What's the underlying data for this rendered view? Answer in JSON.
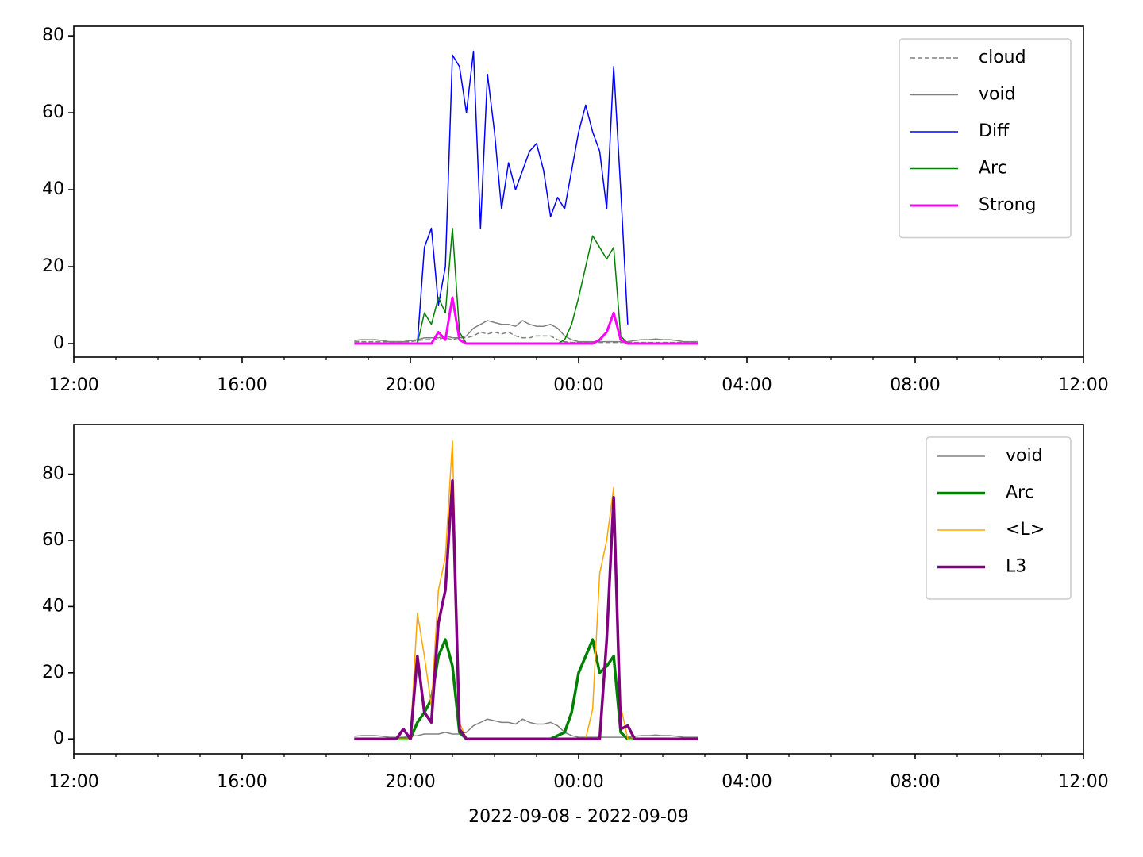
{
  "chart_data": [
    {
      "type": "line",
      "x": [
        18.667,
        18.833,
        19,
        19.167,
        19.333,
        19.5,
        19.667,
        19.833,
        20,
        20.167,
        20.333,
        20.5,
        20.667,
        20.833,
        21,
        21.167,
        21.333,
        21.5,
        21.667,
        21.833,
        22,
        22.167,
        22.333,
        22.5,
        22.667,
        22.833,
        23,
        23.167,
        23.333,
        23.5,
        23.667,
        23.833,
        24,
        24.167,
        24.333,
        24.5,
        24.667,
        24.833,
        25,
        25.167,
        25.333,
        25.5,
        25.667,
        25.833,
        26,
        26.167,
        26.333,
        26.5,
        26.667,
        26.833
      ],
      "xlim": [
        12,
        36
      ],
      "xticks": [
        {
          "value": 12,
          "label": "12:00"
        },
        {
          "value": 16,
          "label": "16:00"
        },
        {
          "value": 20,
          "label": "20:00"
        },
        {
          "value": 24,
          "label": "00:00"
        },
        {
          "value": 28,
          "label": "04:00"
        },
        {
          "value": 32,
          "label": "08:00"
        },
        {
          "value": 36,
          "label": "12:00"
        }
      ],
      "xminorticks": [
        13,
        14,
        15,
        17,
        18,
        19,
        21,
        22,
        23,
        25,
        26,
        27,
        29,
        30,
        31,
        33,
        34,
        35
      ],
      "ylim": [
        -3.5,
        82.5
      ],
      "yticks": [
        0,
        20,
        40,
        60,
        80
      ],
      "legend": "upper right",
      "series": [
        {
          "name": "cloud",
          "color": "#808080",
          "linewidth": 1.5,
          "linestyle": "dashed",
          "values": [
            0.5,
            0.5,
            0.5,
            0.5,
            0.5,
            0.5,
            0.5,
            0.5,
            0.5,
            0.8,
            1,
            1,
            1.2,
            1.5,
            1,
            1.5,
            1.5,
            2,
            3,
            2.5,
            3,
            2.5,
            3,
            2,
            1.5,
            1.5,
            2,
            2,
            2,
            1,
            0.5,
            0.3,
            0.3,
            0.3,
            0.3,
            0.3,
            0.3,
            0.3,
            0.3,
            0.3,
            0.3,
            0.3,
            0.3,
            0.3,
            0.3,
            0.3,
            0.3,
            0.3,
            0.3,
            0.3
          ]
        },
        {
          "name": "void",
          "color": "#808080",
          "linewidth": 1.5,
          "linestyle": "solid",
          "values": [
            0.8,
            1,
            1,
            1,
            0.8,
            0.5,
            0.5,
            0.5,
            0.8,
            1,
            1.5,
            1.5,
            1.5,
            2,
            1.5,
            1.5,
            2,
            4,
            5,
            6,
            5.5,
            5,
            5,
            4.5,
            6,
            5,
            4.5,
            4.5,
            5,
            4,
            2,
            1,
            0.5,
            0.5,
            0.5,
            0.5,
            0.5,
            0.5,
            0.5,
            0.5,
            0.8,
            1,
            1,
            1.2,
            1,
            1,
            0.8,
            0.5,
            0.5,
            0.5
          ]
        },
        {
          "name": "Diff",
          "color": "#0000ff",
          "linewidth": 1.5,
          "linestyle": "solid",
          "values": [
            null,
            null,
            null,
            null,
            null,
            null,
            null,
            null,
            null,
            0,
            25,
            30,
            10,
            20,
            75,
            72,
            60,
            76,
            30,
            70,
            55,
            35,
            47,
            40,
            45,
            50,
            52,
            45,
            33,
            38,
            35,
            45,
            55,
            62,
            55,
            50,
            35,
            72,
            40,
            5,
            null,
            null,
            null,
            null,
            null,
            null,
            null,
            null,
            null,
            null
          ]
        },
        {
          "name": "Arc",
          "color": "#008000",
          "linewidth": 1.5,
          "linestyle": "solid",
          "values": [
            null,
            null,
            null,
            null,
            null,
            null,
            null,
            null,
            null,
            0,
            8,
            5,
            12,
            8,
            30,
            3,
            0,
            0,
            0,
            0,
            0,
            0,
            0,
            0,
            0,
            0,
            0,
            0,
            0,
            0,
            1,
            5,
            12,
            20,
            28,
            25,
            22,
            25,
            2,
            0,
            null,
            null,
            null,
            null,
            null,
            null,
            null,
            null,
            null,
            null
          ]
        },
        {
          "name": "Strong",
          "color": "#ff00ff",
          "linewidth": 3,
          "linestyle": "solid",
          "values": [
            0,
            0,
            0,
            0,
            0,
            0,
            0,
            0,
            0,
            0,
            0,
            0,
            3,
            1,
            12,
            1,
            0,
            0,
            0,
            0,
            0,
            0,
            0,
            0,
            0,
            0,
            0,
            0,
            0,
            0,
            0,
            0,
            0,
            0,
            0,
            1,
            3,
            8,
            1,
            0,
            0,
            0,
            0,
            0,
            0,
            0,
            0,
            0,
            0,
            0
          ]
        }
      ]
    },
    {
      "type": "line",
      "x": [
        18.667,
        18.833,
        19,
        19.167,
        19.333,
        19.5,
        19.667,
        19.833,
        20,
        20.167,
        20.333,
        20.5,
        20.667,
        20.833,
        21,
        21.167,
        21.333,
        21.5,
        21.667,
        21.833,
        22,
        22.167,
        22.333,
        22.5,
        22.667,
        22.833,
        23,
        23.167,
        23.333,
        23.5,
        23.667,
        23.833,
        24,
        24.167,
        24.333,
        24.5,
        24.667,
        24.833,
        25,
        25.167,
        25.333,
        25.5,
        25.667,
        25.833,
        26,
        26.167,
        26.333,
        26.5,
        26.667,
        26.833
      ],
      "xlim": [
        12,
        36
      ],
      "xticks": [
        {
          "value": 12,
          "label": "12:00"
        },
        {
          "value": 16,
          "label": "16:00"
        },
        {
          "value": 20,
          "label": "20:00"
        },
        {
          "value": 24,
          "label": "00:00"
        },
        {
          "value": 28,
          "label": "04:00"
        },
        {
          "value": 32,
          "label": "08:00"
        },
        {
          "value": 36,
          "label": "12:00"
        }
      ],
      "xminorticks": [
        13,
        14,
        15,
        17,
        18,
        19,
        21,
        22,
        23,
        25,
        26,
        27,
        29,
        30,
        31,
        33,
        34,
        35
      ],
      "ylim": [
        -4.5,
        95
      ],
      "yticks": [
        0,
        20,
        40,
        60,
        80
      ],
      "xlabel": "2022-09-08 - 2022-09-09",
      "legend": "upper right",
      "series": [
        {
          "name": "void",
          "color": "#808080",
          "linewidth": 1.5,
          "linestyle": "solid",
          "values": [
            0.8,
            1,
            1,
            1,
            0.8,
            0.5,
            0.5,
            0.5,
            0.8,
            1,
            1.5,
            1.5,
            1.5,
            2,
            1.5,
            1.5,
            2,
            4,
            5,
            6,
            5.5,
            5,
            5,
            4.5,
            6,
            5,
            4.5,
            4.5,
            5,
            4,
            2,
            1,
            0.5,
            0.5,
            0.5,
            0.5,
            0.5,
            0.5,
            0.5,
            0.5,
            0.8,
            1,
            1,
            1.2,
            1,
            1,
            0.8,
            0.5,
            0.5,
            0.5
          ]
        },
        {
          "name": "Arc",
          "color": "#008000",
          "linewidth": 3.5,
          "linestyle": "solid",
          "values": [
            0,
            0,
            0,
            0,
            0,
            0,
            0,
            0,
            0,
            5,
            8,
            12,
            25,
            30,
            22,
            2,
            0,
            0,
            0,
            0,
            0,
            0,
            0,
            0,
            0,
            0,
            0,
            0,
            0,
            1,
            2,
            8,
            20,
            25,
            30,
            20,
            22,
            25,
            2,
            0,
            0,
            0,
            0,
            0,
            0,
            0,
            0,
            0,
            0,
            0
          ]
        },
        {
          "name": "<L>",
          "color": "#ffa500",
          "linewidth": 1.5,
          "linestyle": "solid",
          "values": [
            0,
            0,
            0,
            0,
            0,
            0,
            0,
            0,
            0,
            38,
            25,
            10,
            45,
            55,
            90,
            5,
            0,
            0,
            0,
            0,
            0,
            0,
            0,
            0,
            0,
            0,
            0,
            0,
            0,
            0,
            0,
            0,
            0,
            0,
            9,
            50,
            60,
            76,
            10,
            0,
            0,
            0,
            0,
            0,
            0,
            0,
            0,
            0,
            0,
            0
          ]
        },
        {
          "name": "L3",
          "color": "#800080",
          "linewidth": 3.5,
          "linestyle": "solid",
          "values": [
            0,
            0,
            0,
            0,
            0,
            0,
            0,
            3,
            0,
            25,
            8,
            5,
            35,
            45,
            78,
            3,
            0,
            0,
            0,
            0,
            0,
            0,
            0,
            0,
            0,
            0,
            0,
            0,
            0,
            0,
            0,
            0,
            0,
            0,
            0,
            0,
            30,
            73,
            3,
            4,
            0,
            0,
            0,
            0,
            0,
            0,
            0,
            0,
            0,
            0
          ]
        }
      ]
    }
  ]
}
